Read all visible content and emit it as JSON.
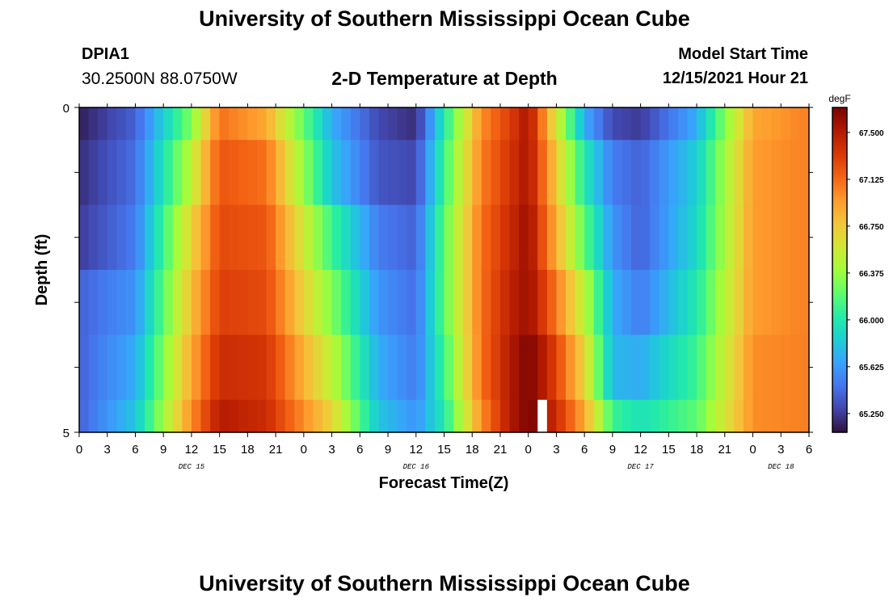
{
  "header": {
    "title": "University of Southern Mississippi Ocean Cube",
    "station_id": "DPIA1",
    "station_coords": "30.2500N  88.0750W",
    "plot_title": "2-D Temperature at Depth",
    "start_label": "Model Start Time",
    "start_value": "12/15/2021 Hour 21"
  },
  "footer": {
    "title": "University of Southern Mississippi Ocean Cube"
  },
  "colors": {
    "palette": [
      "#30123b",
      "#4145ab",
      "#4675ed",
      "#39a2fc",
      "#1bcfd4",
      "#24eca6",
      "#61fc6c",
      "#a4fc3b",
      "#d1e834",
      "#f3c63a",
      "#fe9b2d",
      "#f36315",
      "#d93806",
      "#b11901",
      "#7a0402"
    ],
    "gap": "#ffffff"
  },
  "chart_data": {
    "type": "heatmap",
    "title": "2-D Temperature at Depth",
    "xlabel": "Forecast Time(Z)",
    "ylabel": "Depth (ft)",
    "x_ticks": [
      "0",
      "3",
      "6",
      "9",
      "12",
      "15",
      "18",
      "21",
      "0",
      "3",
      "6",
      "9",
      "12",
      "15",
      "18",
      "21",
      "0",
      "3",
      "6",
      "9",
      "12",
      "15",
      "18",
      "21",
      "0",
      "3",
      "6"
    ],
    "x_tick_hours": [
      0,
      3,
      6,
      9,
      12,
      15,
      18,
      21,
      24,
      27,
      30,
      33,
      36,
      39,
      42,
      45,
      48,
      51,
      54,
      57,
      60,
      63,
      66,
      69,
      72,
      75,
      78
    ],
    "x_range_hours": [
      0,
      78
    ],
    "date_labels": [
      {
        "text": "DEC 15",
        "hour": 12
      },
      {
        "text": "DEC 16",
        "hour": 36
      },
      {
        "text": "DEC 17",
        "hour": 60
      },
      {
        "text": "DEC 18",
        "hour": 75
      }
    ],
    "y_ticks": [
      "0",
      "5"
    ],
    "y_range_ft": [
      0,
      5
    ],
    "depth_levels_ft": [
      0,
      1,
      2,
      3,
      4,
      5
    ],
    "time_step_hours": 1,
    "missing_hours_at_bottom": [
      49
    ],
    "colorbar": {
      "unit": "degF",
      "labels": [
        "67.500",
        "67.125",
        "66.750",
        "66.375",
        "66.000",
        "65.625",
        "65.250"
      ],
      "label_values": [
        67.5,
        67.125,
        66.75,
        66.375,
        66.0,
        65.625,
        65.25
      ],
      "range": [
        65.1,
        67.7
      ]
    },
    "key_hours": [
      0,
      6,
      12,
      15,
      20,
      27,
      32,
      36,
      39,
      43,
      46,
      48,
      50,
      54,
      57,
      60,
      66,
      72,
      78
    ],
    "level_temps_degF": [
      [
        65.15,
        65.4,
        66.3,
        67.1,
        66.9,
        65.7,
        65.3,
        65.2,
        66.0,
        67.0,
        67.3,
        67.55,
        66.9,
        65.7,
        65.3,
        65.25,
        65.7,
        66.9,
        67.05
      ],
      [
        65.2,
        65.45,
        66.5,
        67.2,
        67.1,
        65.8,
        65.35,
        65.3,
        66.1,
        67.05,
        67.35,
        67.55,
        67.0,
        66.0,
        65.5,
        65.4,
        65.85,
        66.95,
        67.05
      ],
      [
        65.25,
        65.5,
        66.7,
        67.25,
        67.2,
        66.1,
        65.5,
        65.4,
        66.2,
        67.1,
        67.4,
        67.6,
        67.1,
        66.2,
        65.6,
        65.4,
        65.9,
        66.95,
        67.05
      ],
      [
        65.4,
        65.6,
        66.8,
        67.3,
        67.25,
        66.3,
        65.6,
        65.45,
        66.2,
        67.1,
        67.45,
        67.6,
        67.25,
        66.5,
        65.7,
        65.5,
        66.0,
        66.95,
        67.05
      ],
      [
        65.4,
        65.7,
        66.9,
        67.4,
        67.35,
        66.5,
        65.7,
        65.5,
        66.1,
        67.1,
        67.5,
        67.7,
        67.45,
        66.7,
        65.75,
        65.7,
        66.1,
        67.0,
        67.05
      ],
      [
        65.4,
        65.8,
        67.0,
        67.5,
        67.4,
        66.7,
        65.8,
        65.6,
        66.0,
        67.0,
        67.5,
        67.7,
        67.55,
        66.9,
        66.1,
        65.95,
        66.2,
        67.0,
        67.05
      ]
    ]
  }
}
